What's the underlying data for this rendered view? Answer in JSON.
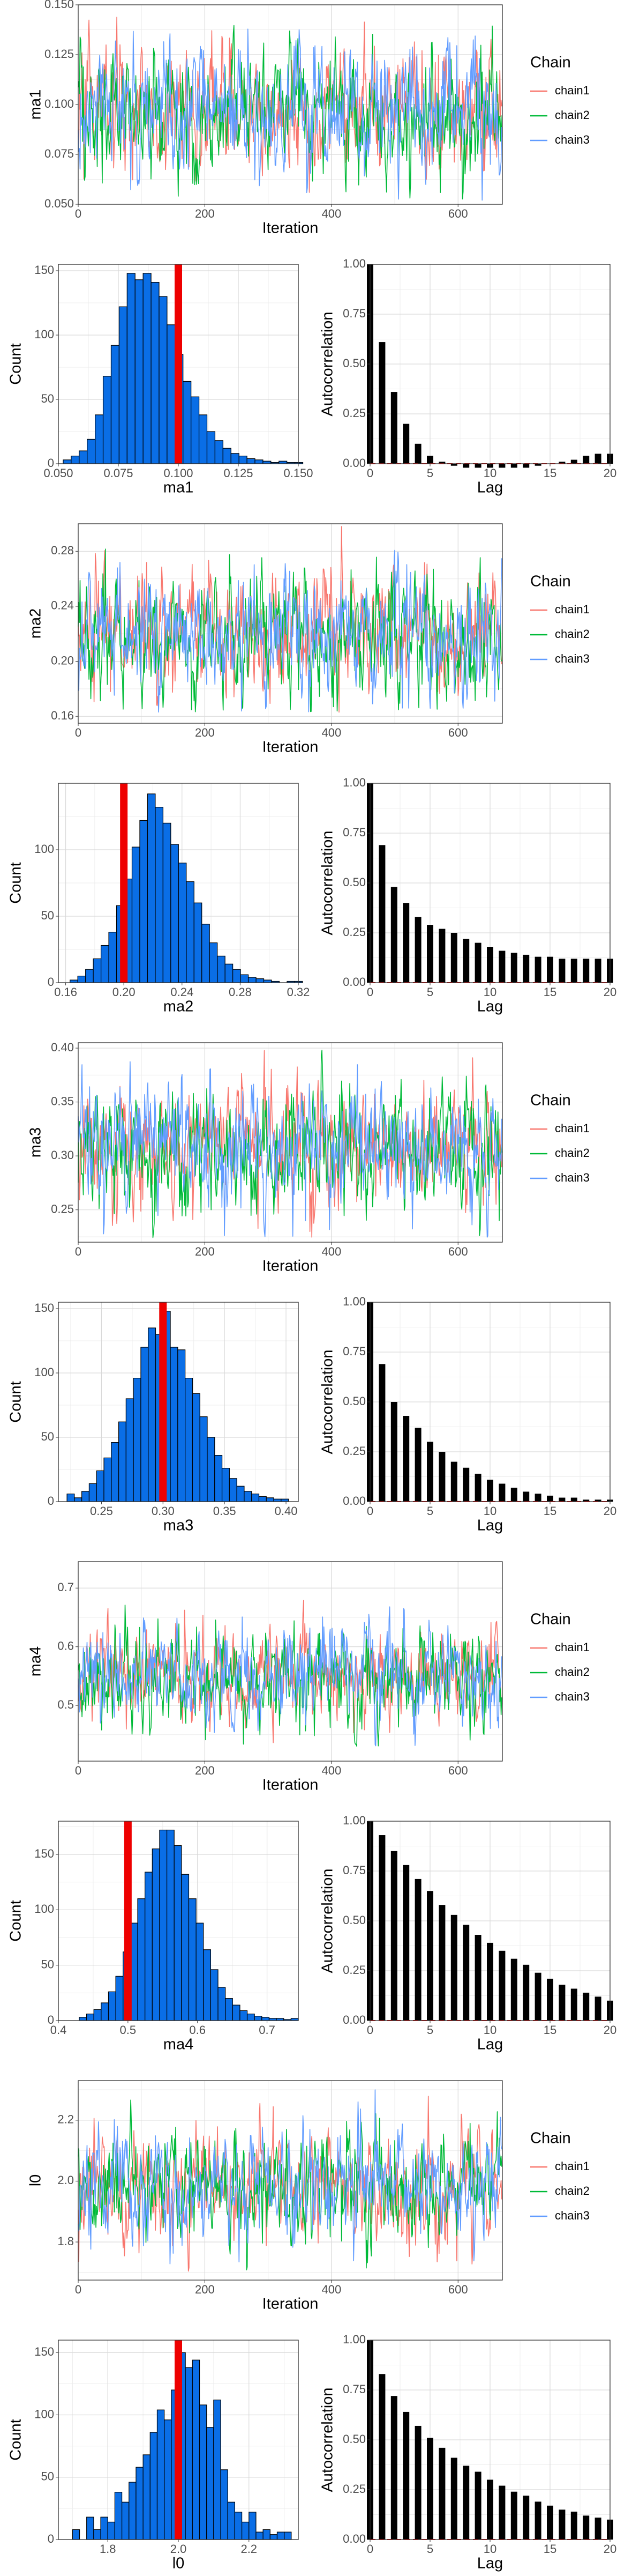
{
  "figure": {
    "legend_title": "Chain",
    "x_trace_label": "Iteration",
    "hist_ylabel": "Count",
    "acf_ylabel": "Autocorrelation",
    "acf_xlabel": "Lag"
  },
  "chains": [
    {
      "name": "chain1",
      "color": "#F8766D"
    },
    {
      "name": "chain2",
      "color": "#00BA38"
    },
    {
      "name": "chain3",
      "color": "#619CFF"
    }
  ],
  "chart_data": [
    {
      "type": "line",
      "title": "",
      "ylabel": "ma1",
      "xlabel": "Iteration",
      "legend": "right",
      "xlim": [
        0,
        670
      ],
      "ylim": [
        0.05,
        0.15
      ],
      "xticks": [
        "0",
        "200",
        "400",
        "600"
      ],
      "yticks": [
        "0.050",
        "0.075",
        "0.100",
        "0.125",
        "0.150"
      ],
      "trace_summary": {
        "mean": 0.097,
        "sd": 0.016,
        "min": 0.052,
        "max": 0.148,
        "iterations": 670
      }
    },
    {
      "type": "bar",
      "ylabel": "Count",
      "xlabel": "ma1",
      "xlim": [
        0.05,
        0.15
      ],
      "ylim": [
        0,
        155
      ],
      "xticks": [
        "0.050",
        "0.075",
        "0.100",
        "0.125",
        "0.150"
      ],
      "yticks": [
        "0",
        "50",
        "100",
        "150"
      ],
      "true_value": 0.1,
      "bins_start": 0.052,
      "bin_width": 0.00333,
      "counts": [
        3,
        6,
        10,
        19,
        38,
        68,
        92,
        122,
        148,
        143,
        148,
        141,
        130,
        108,
        85,
        64,
        52,
        38,
        25,
        18,
        12,
        8,
        6,
        4,
        3,
        2,
        1,
        2,
        1,
        1
      ]
    },
    {
      "type": "bar",
      "ylabel": "Autocorrelation",
      "xlabel": "Lag",
      "xlim": [
        0,
        20
      ],
      "ylim": [
        0,
        1
      ],
      "xticks": [
        "0",
        "5",
        "10",
        "15",
        "20"
      ],
      "yticks": [
        "0.00",
        "0.25",
        "0.50",
        "0.75",
        "1.00"
      ],
      "lags": [
        0,
        1,
        2,
        3,
        4,
        5,
        6,
        7,
        8,
        9,
        10,
        11,
        12,
        13,
        14,
        15,
        16,
        17,
        18,
        19,
        20
      ],
      "values": [
        1.0,
        0.61,
        0.36,
        0.2,
        0.1,
        0.04,
        0.01,
        -0.01,
        -0.02,
        -0.02,
        -0.02,
        -0.02,
        -0.02,
        -0.02,
        -0.01,
        0.0,
        0.01,
        0.02,
        0.04,
        0.05,
        0.05
      ]
    },
    {
      "type": "line",
      "title": "",
      "ylabel": "ma2",
      "xlabel": "Iteration",
      "legend": "right",
      "xlim": [
        0,
        670
      ],
      "ylim": [
        0.155,
        0.3
      ],
      "xticks": [
        "0",
        "200",
        "400",
        "600"
      ],
      "yticks": [
        "0.16",
        "0.20",
        "0.24",
        "0.28"
      ],
      "trace_summary": {
        "mean": 0.219,
        "sd": 0.022,
        "min": 0.163,
        "max": 0.3,
        "iterations": 670
      }
    },
    {
      "type": "bar",
      "ylabel": "Count",
      "xlabel": "ma2",
      "xlim": [
        0.155,
        0.32
      ],
      "ylim": [
        0,
        150
      ],
      "xticks": [
        "0.16",
        "0.20",
        "0.24",
        "0.28",
        "0.32"
      ],
      "yticks": [
        "0",
        "50",
        "100"
      ],
      "true_value": 0.2,
      "bins_start": 0.163,
      "bin_width": 0.00533,
      "counts": [
        2,
        5,
        10,
        18,
        28,
        38,
        58,
        78,
        102,
        122,
        142,
        132,
        120,
        104,
        90,
        76,
        60,
        44,
        30,
        20,
        14,
        10,
        6,
        4,
        3,
        2,
        1,
        0,
        1,
        1
      ]
    },
    {
      "type": "bar",
      "ylabel": "Autocorrelation",
      "xlabel": "Lag",
      "xlim": [
        0,
        20
      ],
      "ylim": [
        0,
        1
      ],
      "xticks": [
        "0",
        "5",
        "10",
        "15",
        "20"
      ],
      "yticks": [
        "0.00",
        "0.25",
        "0.50",
        "0.75",
        "1.00"
      ],
      "lags": [
        0,
        1,
        2,
        3,
        4,
        5,
        6,
        7,
        8,
        9,
        10,
        11,
        12,
        13,
        14,
        15,
        16,
        17,
        18,
        19,
        20
      ],
      "values": [
        1.0,
        0.69,
        0.48,
        0.4,
        0.33,
        0.29,
        0.27,
        0.25,
        0.22,
        0.2,
        0.18,
        0.16,
        0.15,
        0.14,
        0.13,
        0.13,
        0.12,
        0.12,
        0.12,
        0.12,
        0.12
      ]
    },
    {
      "type": "line",
      "title": "",
      "ylabel": "ma3",
      "xlabel": "Iteration",
      "legend": "right",
      "xlim": [
        0,
        670
      ],
      "ylim": [
        0.22,
        0.405
      ],
      "xticks": [
        "0",
        "200",
        "400",
        "600"
      ],
      "yticks": [
        "0.25",
        "0.30",
        "0.35",
        "0.40"
      ],
      "trace_summary": {
        "mean": 0.306,
        "sd": 0.028,
        "min": 0.224,
        "max": 0.4,
        "iterations": 670
      }
    },
    {
      "type": "bar",
      "ylabel": "Count",
      "xlabel": "ma3",
      "xlim": [
        0.215,
        0.41
      ],
      "ylim": [
        0,
        155
      ],
      "xticks": [
        "0.25",
        "0.30",
        "0.35",
        "0.40"
      ],
      "yticks": [
        "0",
        "50",
        "100",
        "150"
      ],
      "true_value": 0.3,
      "bins_start": 0.222,
      "bin_width": 0.006,
      "counts": [
        6,
        3,
        8,
        14,
        24,
        34,
        46,
        62,
        80,
        96,
        120,
        135,
        130,
        148,
        120,
        118,
        96,
        84,
        66,
        50,
        36,
        26,
        18,
        12,
        8,
        6,
        4,
        3,
        2,
        2
      ]
    },
    {
      "type": "bar",
      "ylabel": "Autocorrelation",
      "xlabel": "Lag",
      "xlim": [
        0,
        20
      ],
      "ylim": [
        0,
        1
      ],
      "xticks": [
        "0",
        "5",
        "10",
        "15",
        "20"
      ],
      "yticks": [
        "0.00",
        "0.25",
        "0.50",
        "0.75",
        "1.00"
      ],
      "lags": [
        0,
        1,
        2,
        3,
        4,
        5,
        6,
        7,
        8,
        9,
        10,
        11,
        12,
        13,
        14,
        15,
        16,
        17,
        18,
        19,
        20
      ],
      "values": [
        1.0,
        0.69,
        0.5,
        0.43,
        0.37,
        0.3,
        0.25,
        0.2,
        0.17,
        0.14,
        0.11,
        0.09,
        0.07,
        0.05,
        0.04,
        0.03,
        0.02,
        0.02,
        0.01,
        0.01,
        0.01
      ]
    },
    {
      "type": "line",
      "title": "",
      "ylabel": "ma4",
      "xlabel": "Iteration",
      "legend": "right",
      "xlim": [
        0,
        670
      ],
      "ylim": [
        0.405,
        0.745
      ],
      "xticks": [
        "0",
        "200",
        "400",
        "600"
      ],
      "yticks": [
        "0.5",
        "0.6",
        "0.7"
      ],
      "trace_summary": {
        "mean": 0.55,
        "sd": 0.04,
        "min": 0.43,
        "max": 0.73,
        "iterations": 670
      }
    },
    {
      "type": "bar",
      "ylabel": "Count",
      "xlabel": "ma4",
      "xlim": [
        0.4,
        0.745
      ],
      "ylim": [
        0,
        180
      ],
      "xticks": [
        "0.4",
        "0.5",
        "0.6",
        "0.7"
      ],
      "yticks": [
        "0",
        "50",
        "100",
        "150"
      ],
      "true_value": 0.5,
      "bins_start": 0.43,
      "bin_width": 0.0105,
      "counts": [
        3,
        6,
        10,
        16,
        26,
        40,
        62,
        88,
        110,
        134,
        155,
        172,
        172,
        158,
        132,
        110,
        88,
        64,
        46,
        30,
        20,
        14,
        9,
        6,
        4,
        3,
        2,
        2,
        1,
        2
      ]
    },
    {
      "type": "bar",
      "ylabel": "Autocorrelation",
      "xlabel": "Lag",
      "xlim": [
        0,
        20
      ],
      "ylim": [
        0,
        1
      ],
      "xticks": [
        "0",
        "5",
        "10",
        "15",
        "20"
      ],
      "yticks": [
        "0.00",
        "0.25",
        "0.50",
        "0.75",
        "1.00"
      ],
      "lags": [
        0,
        1,
        2,
        3,
        4,
        5,
        6,
        7,
        8,
        9,
        10,
        11,
        12,
        13,
        14,
        15,
        16,
        17,
        18,
        19,
        20
      ],
      "values": [
        1.0,
        0.93,
        0.85,
        0.78,
        0.71,
        0.65,
        0.58,
        0.53,
        0.48,
        0.43,
        0.39,
        0.35,
        0.31,
        0.28,
        0.24,
        0.21,
        0.18,
        0.16,
        0.14,
        0.12,
        0.1
      ]
    },
    {
      "type": "line",
      "title": "",
      "ylabel": "l0",
      "xlabel": "Iteration",
      "legend": "right",
      "xlim": [
        0,
        670
      ],
      "ylim": [
        1.675,
        2.33
      ],
      "xticks": [
        "0",
        "200",
        "400",
        "600"
      ],
      "yticks": [
        "1.8",
        "2.0",
        "2.2"
      ],
      "trace_summary": {
        "mean": 1.98,
        "sd": 0.09,
        "min": 1.7,
        "max": 2.3,
        "iterations": 670
      }
    },
    {
      "type": "bar",
      "ylabel": "Count",
      "xlabel": "l0",
      "xlim": [
        1.66,
        2.34
      ],
      "ylim": [
        0,
        160
      ],
      "xticks": [
        "1.8",
        "2.0",
        "2.2"
      ],
      "yticks": [
        "0",
        "50",
        "100",
        "150"
      ],
      "true_value": 2.0,
      "bins_start": 1.7,
      "bin_width": 0.02,
      "counts": [
        8,
        0,
        18,
        8,
        18,
        14,
        38,
        30,
        46,
        58,
        68,
        86,
        104,
        96,
        120,
        150,
        138,
        144,
        108,
        90,
        112,
        56,
        30,
        22,
        14,
        22,
        6,
        8,
        4,
        6,
        6
      ]
    },
    {
      "type": "bar",
      "ylabel": "Autocorrelation",
      "xlabel": "Lag",
      "xlim": [
        0,
        20
      ],
      "ylim": [
        0,
        1
      ],
      "xticks": [
        "0",
        "5",
        "10",
        "15",
        "20"
      ],
      "yticks": [
        "0.00",
        "0.25",
        "0.50",
        "0.75",
        "1.00"
      ],
      "lags": [
        0,
        1,
        2,
        3,
        4,
        5,
        6,
        7,
        8,
        9,
        10,
        11,
        12,
        13,
        14,
        15,
        16,
        17,
        18,
        19,
        20
      ],
      "values": [
        1.0,
        0.83,
        0.72,
        0.64,
        0.57,
        0.51,
        0.46,
        0.41,
        0.37,
        0.34,
        0.3,
        0.27,
        0.24,
        0.22,
        0.19,
        0.17,
        0.15,
        0.14,
        0.12,
        0.11,
        0.1
      ]
    }
  ]
}
